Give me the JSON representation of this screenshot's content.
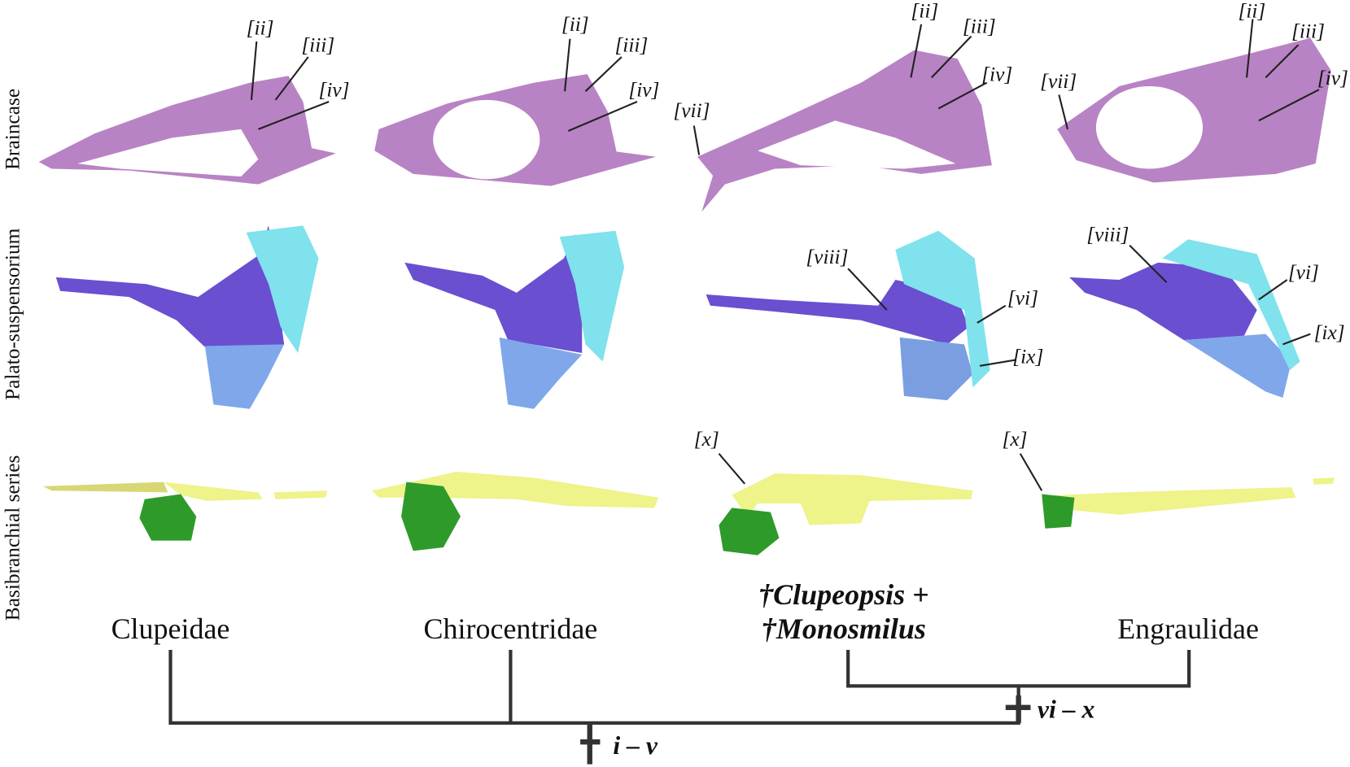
{
  "row_labels": [
    "Braincase",
    "Palato-suspensorium",
    "Basibranchial series"
  ],
  "panels": [
    {
      "taxon": [
        "Clupeidae"
      ],
      "labels": [
        "[ii]",
        "[iii]",
        "[iv]"
      ]
    },
    {
      "taxon": [
        "Chirocentridae"
      ],
      "labels": [
        "[ii]",
        "[iii]",
        "[iv]"
      ]
    },
    {
      "taxon": [
        "†Clupeopsis +",
        "†Monosmilus"
      ],
      "labels": [
        "[ii]",
        "[iii]",
        "[iv]",
        "[vii]",
        "[viii]",
        "[vi]",
        "[ix]",
        "[x]"
      ]
    },
    {
      "taxon": [
        "Engraulidae"
      ],
      "labels": [
        "[ii]",
        "[iii]",
        "[iv]",
        "[vii]",
        "[viii]",
        "[vi]",
        "[ix]",
        "[x]"
      ]
    }
  ],
  "tree": {
    "characters": [
      "i – v",
      "vi – x"
    ]
  }
}
